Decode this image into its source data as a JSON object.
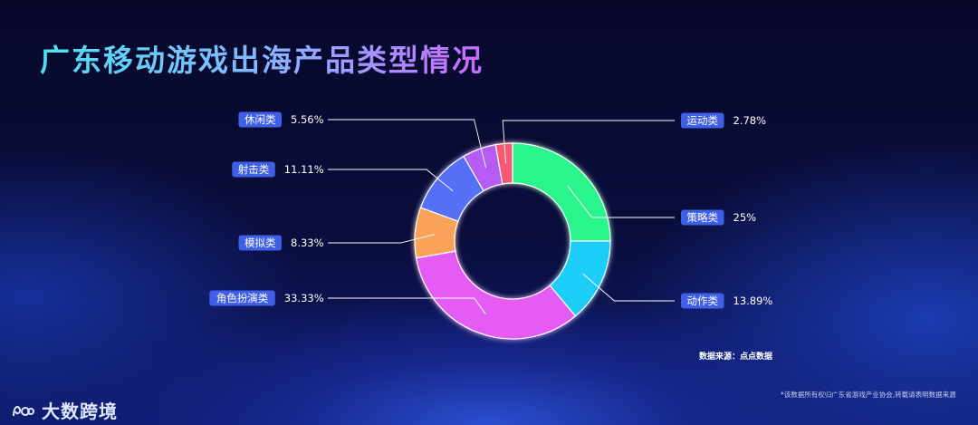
{
  "title": "广东移动游戏出海产品类型情况",
  "source": "数据来源：点点数据",
  "copyright": "*该数据所有权归广东省游戏产业协会,转载请表明数据来源",
  "logo_text": "大数跨境",
  "colors": {
    "策略类": "#2cf58c",
    "动作类": "#1ecdf8",
    "角色扮演类": "#e55cf5",
    "模拟类": "#f8a25a",
    "射击类": "#5470f5",
    "休闲类": "#b65cf5",
    "运动类": "#f55a72"
  },
  "chart_data": {
    "type": "pie",
    "donut": true,
    "categories": [
      "策略类",
      "动作类",
      "角色扮演类",
      "模拟类",
      "射击类",
      "休闲类",
      "运动类"
    ],
    "values": [
      25,
      13.89,
      33.33,
      8.33,
      11.11,
      5.56,
      2.78
    ],
    "value_labels": [
      "25%",
      "13.89%",
      "33.33%",
      "8.33%",
      "11.11%",
      "5.56%",
      "2.78%"
    ]
  }
}
